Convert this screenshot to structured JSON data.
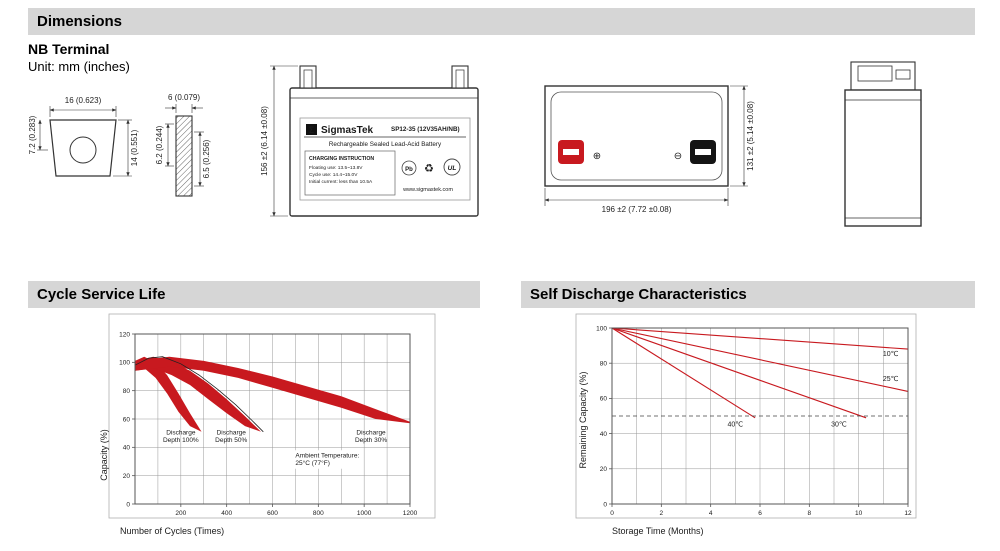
{
  "colors": {
    "header_bg": "#d6d6d6",
    "chart_red": "#c8191f",
    "grid": "#999999"
  },
  "sections": {
    "dimensions_title": "Dimensions",
    "cycle_title": "Cycle Service Life",
    "self_discharge_title": "Self Discharge Characteristics"
  },
  "dimensions": {
    "subtitle": "NB Terminal",
    "unit_note": "Unit: mm (inches)",
    "terminal_front": {
      "width": "16 (0.623)",
      "depth": "7.2 (0.283)",
      "height": "14 (0.551)"
    },
    "terminal_side": {
      "width": "6 (0.079)",
      "inner": "6.2 (0.244)",
      "outer": "6.5 (0.256)"
    },
    "front_view": {
      "height": "156 ±2 (6.14 ±0.08)"
    },
    "top_view": {
      "length": "196 ±2 (7.72 ±0.08)",
      "width": "131 ±2 (5.14 ±0.08)",
      "positive_symbol": "⊕",
      "negative_symbol": "⊖"
    },
    "label": {
      "logo_glyph": "Σ",
      "brand": "SigmasTek",
      "model": "SP12-35 (12V35AH/NB)",
      "battery_type": "Rechargeable Sealed Lead-Acid Battery",
      "charging_title": "CHARGING INSTRUCTION",
      "charging_line1": "Floating use: 13.5~13.8V",
      "charging_line2": "Cycle use: 14.4~15.0V",
      "charging_line3": "Initial current: less than 10.5A",
      "pb_icon": "Pb",
      "recycle_icon": "♻",
      "ul_icon": "UL",
      "website": "www.sigmastek.com"
    }
  },
  "chart_data": [
    {
      "name": "Cycle Service Life",
      "type": "area",
      "xlabel": "Number of Cycles (Times)",
      "ylabel": "Capacity (%)",
      "xlim": [
        0,
        1200
      ],
      "ylim": [
        0,
        120
      ],
      "xticks": [
        200,
        400,
        600,
        800,
        1000,
        1200
      ],
      "yticks": [
        0,
        20,
        40,
        60,
        80,
        100,
        120
      ],
      "xgrid_step": 100,
      "ygrid_step": 20,
      "fill_color": "#c8191f",
      "grid_color": "#999999",
      "bands": [
        {
          "name": "Discharge Depth 100%",
          "upper": [
            [
              0,
              101
            ],
            [
              40,
              104
            ],
            [
              90,
              100
            ],
            [
              140,
              91
            ],
            [
              190,
              78
            ],
            [
              240,
              64
            ],
            [
              290,
              51
            ]
          ],
          "lower": [
            [
              0,
              94
            ],
            [
              40,
              96
            ],
            [
              90,
              89
            ],
            [
              140,
              78
            ],
            [
              190,
              65
            ],
            [
              240,
              55
            ],
            [
              290,
              51
            ]
          ]
        },
        {
          "name": "Discharge Depth 50%",
          "upper": [
            [
              0,
              101
            ],
            [
              80,
              104
            ],
            [
              160,
              100
            ],
            [
              240,
              94
            ],
            [
              320,
              85
            ],
            [
              400,
              74
            ],
            [
              480,
              62
            ],
            [
              550,
              51
            ]
          ],
          "lower": [
            [
              0,
              94
            ],
            [
              80,
              96
            ],
            [
              160,
              91
            ],
            [
              240,
              84
            ],
            [
              320,
              74
            ],
            [
              400,
              64
            ],
            [
              480,
              55
            ],
            [
              550,
              51
            ]
          ]
        },
        {
          "name": "Discharge Depth 30%",
          "upper": [
            [
              0,
              101
            ],
            [
              150,
              104
            ],
            [
              300,
              101
            ],
            [
              450,
              96
            ],
            [
              600,
              90
            ],
            [
              750,
              83
            ],
            [
              900,
              76
            ],
            [
              1050,
              67
            ],
            [
              1200,
              58
            ]
          ],
          "lower": [
            [
              0,
              94
            ],
            [
              150,
              97
            ],
            [
              300,
              94
            ],
            [
              450,
              89
            ],
            [
              600,
              82
            ],
            [
              750,
              75
            ],
            [
              900,
              68
            ],
            [
              1050,
              60
            ],
            [
              1200,
              57
            ]
          ]
        }
      ],
      "curves": [
        {
          "color": "#222222",
          "width": 0.8,
          "points": [
            [
              0,
              98
            ],
            [
              60,
              103
            ],
            [
              120,
              104
            ],
            [
              200,
              99
            ],
            [
              280,
              91
            ],
            [
              360,
              81
            ],
            [
              440,
              70
            ],
            [
              510,
              59
            ],
            [
              560,
              51
            ]
          ]
        }
      ],
      "annotations": [
        {
          "lines": [
            "Discharge",
            "Depth 100%"
          ],
          "x": 200,
          "y": 49,
          "align": "middle"
        },
        {
          "lines": [
            "Discharge",
            "Depth 50%"
          ],
          "x": 420,
          "y": 49,
          "align": "middle"
        },
        {
          "lines": [
            "Discharge",
            "Depth 30%"
          ],
          "x": 1030,
          "y": 49,
          "align": "middle"
        },
        {
          "lines": [
            "Ambient Temperature:",
            "25°C (77°F)"
          ],
          "x": 700,
          "y": 33,
          "align": "start",
          "boxed": true
        }
      ]
    },
    {
      "name": "Self Discharge Characteristics",
      "type": "line",
      "xlabel": "Storage Time (Months)",
      "ylabel": "Remaining Capacity (%)",
      "xlim": [
        0,
        12
      ],
      "ylim": [
        0,
        100
      ],
      "xticks": [
        0,
        2,
        4,
        6,
        8,
        10,
        12
      ],
      "yticks": [
        0,
        20,
        40,
        60,
        80,
        100
      ],
      "xgrid_step": 1,
      "ygrid_step": 20,
      "line_color": "#c8191f",
      "grid_color": "#999999",
      "dashed_line_y": 50,
      "series": [
        {
          "name": "10℃",
          "points": [
            [
              0,
              100
            ],
            [
              12,
              88
            ]
          ],
          "label_at": [
            11.3,
            84
          ]
        },
        {
          "name": "25℃",
          "points": [
            [
              0,
              100
            ],
            [
              12,
              64
            ]
          ],
          "label_at": [
            11.3,
            70
          ]
        },
        {
          "name": "30℃",
          "points": [
            [
              0,
              100
            ],
            [
              10.3,
              49
            ]
          ],
          "label_at": [
            9.2,
            44
          ]
        },
        {
          "name": "40℃",
          "points": [
            [
              0,
              100
            ],
            [
              5.8,
              49
            ]
          ],
          "label_at": [
            5.0,
            44
          ]
        }
      ]
    }
  ]
}
